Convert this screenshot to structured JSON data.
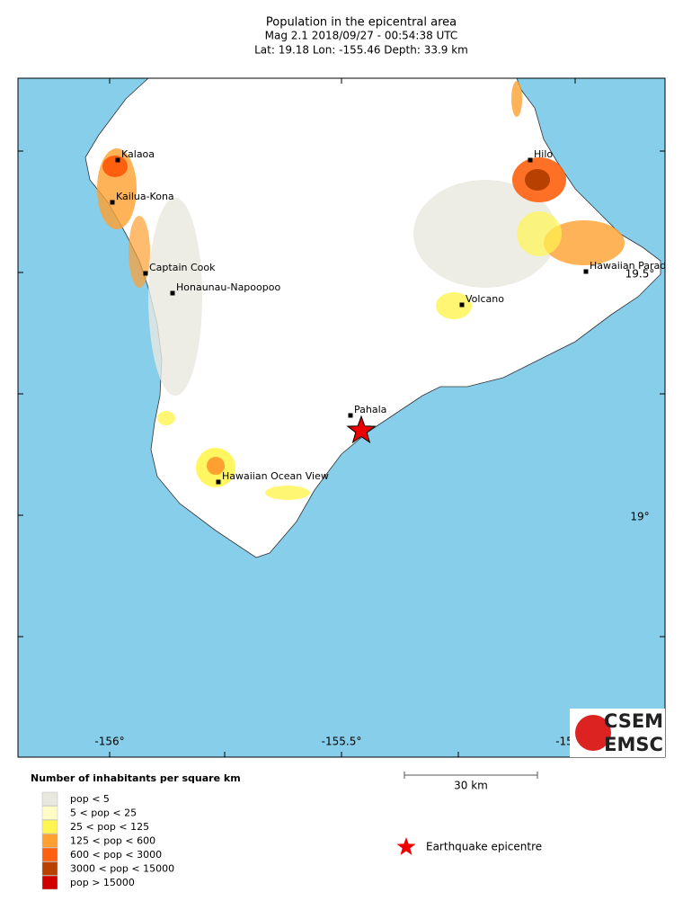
{
  "header": {
    "title": "Population in the epicentral area",
    "line2": "Mag 2.1  2018/09/27 - 00:54:38 UTC",
    "line3": "Lat: 19.18    Lon: -155.46    Depth:  33.9 km"
  },
  "map": {
    "towns": [
      "Kalaoa",
      "Kailua-Kona",
      "Captain Cook",
      "Honaunau-Napoopoo",
      "Hilo",
      "Hawaiian Parad",
      "Volcano",
      "Pahala",
      "Hawaiian Ocean View"
    ],
    "lon_labels": [
      "-156°",
      "-155.5°",
      "-15"
    ],
    "lat_labels": [
      "19.5°",
      "19°"
    ]
  },
  "legend": {
    "title": "Number of inhabitants per square km",
    "items": [
      "pop < 5",
      "5 < pop < 25",
      "25 < pop < 125",
      "125 < pop < 600",
      "600 < pop < 3000",
      "3000 < pop < 15000",
      "pop > 15000"
    ],
    "epicentre": "Earthquake epicentre"
  },
  "scale": {
    "label": "30 km"
  },
  "logo": {
    "top": "CSEM",
    "bottom": "EMSC"
  }
}
